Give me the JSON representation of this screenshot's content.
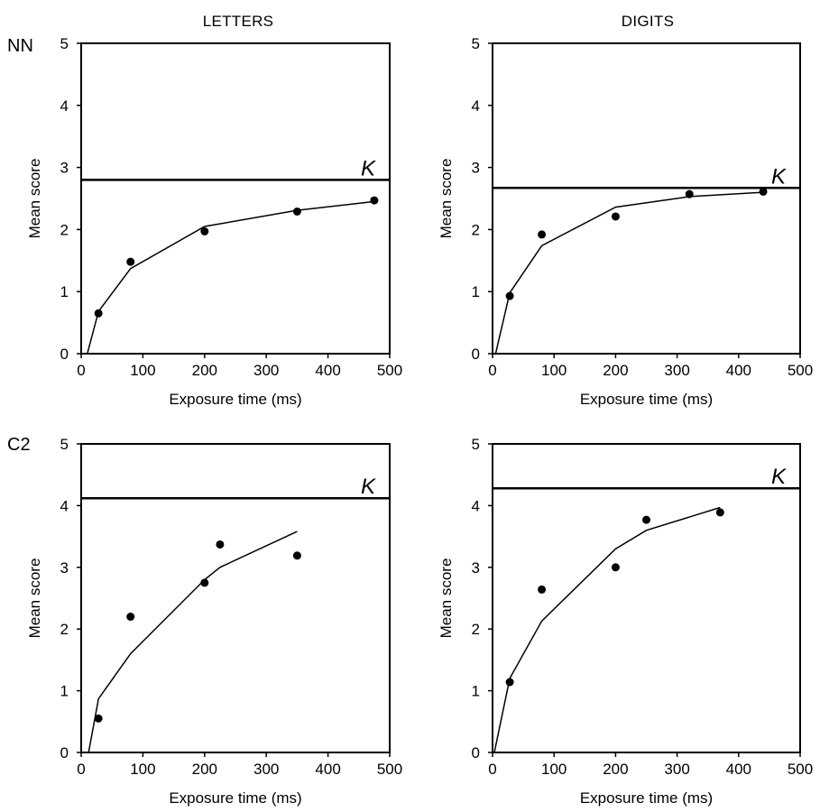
{
  "figure": {
    "column_titles": [
      "LETTERS",
      "DIGITS"
    ],
    "row_labels": [
      "NN",
      "C2"
    ]
  },
  "chart_data": [
    {
      "type": "scatter",
      "panel": "NN-letters",
      "xlabel": "Exposure time (ms)",
      "ylabel": "Mean score",
      "xlim": [
        0,
        500
      ],
      "ylim": [
        0,
        5
      ],
      "xticks": [
        0,
        100,
        200,
        300,
        400,
        500
      ],
      "yticks": [
        0,
        1,
        2,
        3,
        4,
        5
      ],
      "points": [
        [
          28,
          0.65
        ],
        [
          80,
          1.48
        ],
        [
          200,
          1.97
        ],
        [
          350,
          2.29
        ],
        [
          475,
          2.47
        ]
      ],
      "fit_line": [
        [
          10,
          0
        ],
        [
          28,
          0.68
        ],
        [
          80,
          1.37
        ],
        [
          200,
          2.05
        ],
        [
          350,
          2.31
        ],
        [
          475,
          2.45
        ]
      ],
      "k_line": 2.8,
      "k_label": "K"
    },
    {
      "type": "scatter",
      "panel": "NN-digits",
      "xlabel": "Exposure time (ms)",
      "ylabel": "Mean score",
      "xlim": [
        0,
        500
      ],
      "ylim": [
        0,
        5
      ],
      "xticks": [
        0,
        100,
        200,
        300,
        400,
        500
      ],
      "yticks": [
        0,
        1,
        2,
        3,
        4,
        5
      ],
      "points": [
        [
          28,
          0.93
        ],
        [
          80,
          1.92
        ],
        [
          200,
          2.21
        ],
        [
          320,
          2.57
        ],
        [
          440,
          2.61
        ]
      ],
      "fit_line": [
        [
          5,
          0
        ],
        [
          28,
          0.98
        ],
        [
          80,
          1.74
        ],
        [
          200,
          2.36
        ],
        [
          320,
          2.53
        ],
        [
          440,
          2.6
        ]
      ],
      "k_line": 2.67,
      "k_label": "K"
    },
    {
      "type": "scatter",
      "panel": "C2-letters",
      "xlabel": "Exposure time   (ms)",
      "ylabel": "Mean score",
      "xlim": [
        0,
        500
      ],
      "ylim": [
        0,
        5
      ],
      "xticks": [
        0,
        100,
        200,
        300,
        400,
        500
      ],
      "yticks": [
        0,
        1,
        2,
        3,
        4,
        5
      ],
      "points": [
        [
          28,
          0.55
        ],
        [
          80,
          2.2
        ],
        [
          200,
          2.75
        ],
        [
          225,
          3.37
        ],
        [
          350,
          3.19
        ]
      ],
      "fit_line": [
        [
          12,
          0
        ],
        [
          28,
          0.87
        ],
        [
          80,
          1.6
        ],
        [
          200,
          2.8
        ],
        [
          225,
          3.0
        ],
        [
          350,
          3.58
        ]
      ],
      "k_line": 4.12,
      "k_label": "K"
    },
    {
      "type": "scatter",
      "panel": "C2-digits",
      "xlabel": "Exposure time (ms)",
      "ylabel": "Mean score",
      "xlim": [
        0,
        500
      ],
      "ylim": [
        0,
        5
      ],
      "xticks": [
        0,
        100,
        200,
        300,
        400,
        500
      ],
      "yticks": [
        0,
        1,
        2,
        3,
        4,
        5
      ],
      "points": [
        [
          28,
          1.14
        ],
        [
          80,
          2.64
        ],
        [
          200,
          3.0
        ],
        [
          250,
          3.77
        ],
        [
          370,
          3.89
        ]
      ],
      "fit_line": [
        [
          3,
          0
        ],
        [
          28,
          1.2
        ],
        [
          80,
          2.13
        ],
        [
          200,
          3.3
        ],
        [
          250,
          3.6
        ],
        [
          370,
          3.97
        ]
      ],
      "k_line": 4.28,
      "k_label": "K"
    }
  ]
}
